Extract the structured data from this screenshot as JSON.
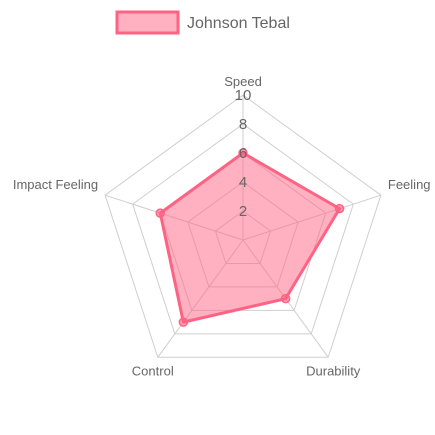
{
  "chart_data": {
    "type": "radar",
    "axes": [
      "Speed",
      "Feeling",
      "Durability",
      "Control",
      "Impact Feeling"
    ],
    "series": [
      {
        "name": "Johnson Tebal",
        "values": [
          6,
          7,
          5,
          7,
          6
        ]
      }
    ],
    "r_range": [
      0,
      10
    ],
    "ticks": [
      "2",
      "4",
      "6",
      "8",
      "10"
    ],
    "grid": true,
    "legend_position": "top",
    "colors": {
      "fill": "#ff6384",
      "stroke": "#ff6384",
      "grid": "#cfcfcf",
      "text": "#666666"
    }
  }
}
